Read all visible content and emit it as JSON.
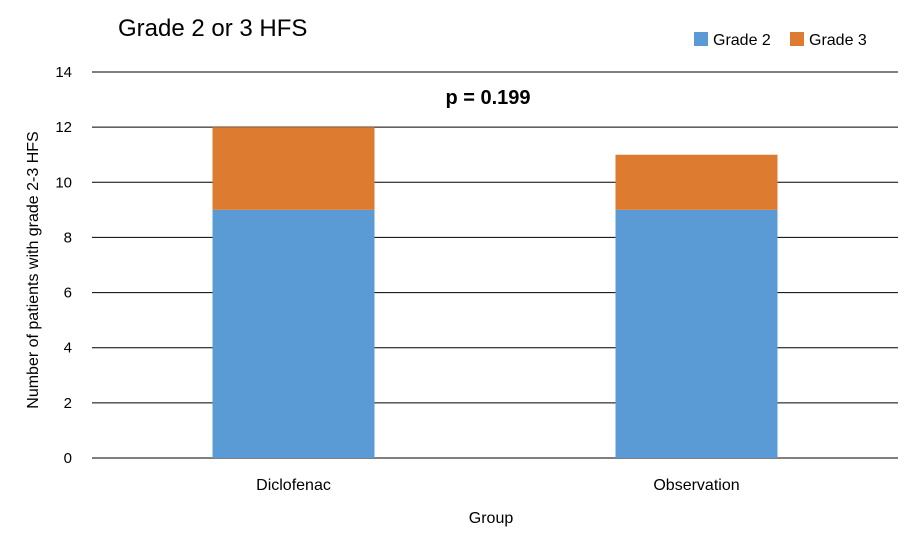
{
  "chart_data": {
    "type": "bar",
    "stacked": true,
    "title": "Grade 2 or 3 HFS",
    "annotation": "p = 0.199",
    "xlabel": "Group",
    "ylabel": "Number of patients with grade 2-3 HFS",
    "categories": [
      "Diclofenac",
      "Observation"
    ],
    "series": [
      {
        "name": "Grade 2",
        "values": [
          9,
          9
        ],
        "color": "#5B9BD5"
      },
      {
        "name": "Grade 3",
        "values": [
          3,
          2
        ],
        "color": "#DD7B31"
      }
    ],
    "ylim": [
      0,
      14
    ],
    "yticks": [
      0,
      2,
      4,
      6,
      8,
      10,
      12,
      14
    ],
    "grid": true,
    "legend_position": "top-right"
  }
}
